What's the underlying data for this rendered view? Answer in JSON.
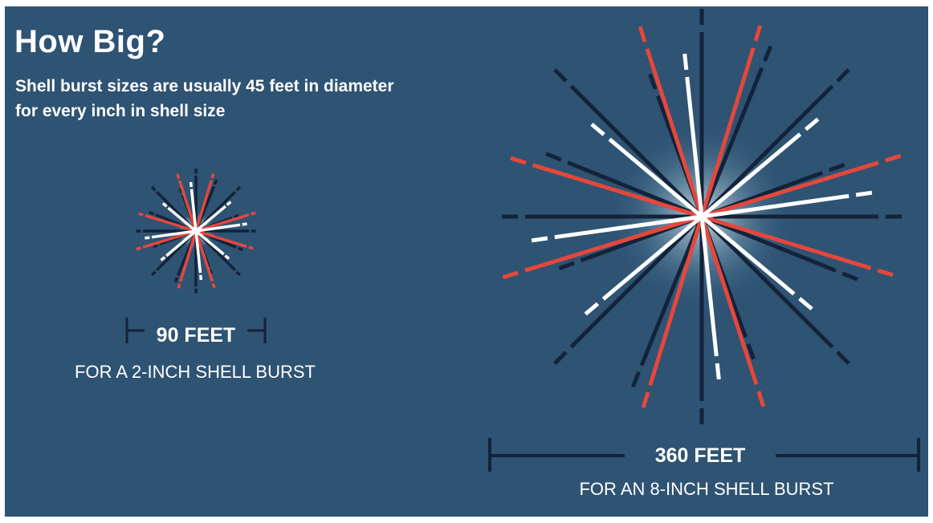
{
  "title": "How Big?",
  "subtitle": "Shell burst sizes are usually 45 feet in diameter for every inch in shell size",
  "colors": {
    "background": "#2e5373",
    "red": "#e5473c",
    "white": "#ffffff",
    "navy": "#13233a"
  },
  "bursts": [
    {
      "id": "small",
      "diameter_label": "90 FEET",
      "caption": "FOR A 2-INCH SHELL BURST"
    },
    {
      "id": "large",
      "diameter_label": "360 FEET",
      "caption": "FOR AN 8-INCH SHELL BURST"
    }
  ]
}
